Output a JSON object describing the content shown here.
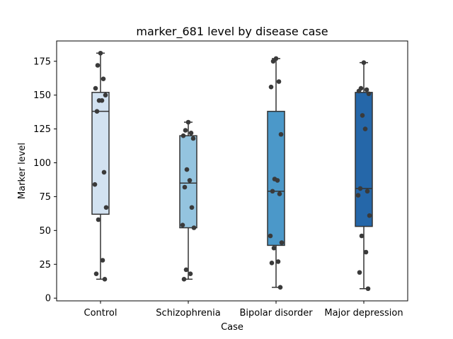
{
  "chart_data": {
    "type": "box",
    "title": "marker_681 level by disease case",
    "xlabel": "Case",
    "ylabel": "Marker level",
    "ylim": [
      -2,
      190
    ],
    "yticks": [
      0,
      25,
      50,
      75,
      100,
      125,
      150,
      175
    ],
    "grid": false,
    "legend": "none",
    "categories": [
      "Control",
      "Schizophrenia",
      "Bipolar disorder",
      "Major depression"
    ],
    "colors": [
      "#d2e2f1",
      "#94c4df",
      "#4b98c9",
      "#2567a9"
    ],
    "boxes": [
      {
        "category": "Control",
        "whisker_low": 14,
        "q1": 62,
        "median": 138,
        "q3": 152,
        "whisker_high": 181
      },
      {
        "category": "Schizophrenia",
        "whisker_low": 14,
        "q1": 52,
        "median": 85,
        "q3": 120,
        "whisker_high": 130
      },
      {
        "category": "Bipolar disorder",
        "whisker_low": 8,
        "q1": 39,
        "median": 79,
        "q3": 138,
        "whisker_high": 177
      },
      {
        "category": "Major depression",
        "whisker_low": 7,
        "q1": 53,
        "median": 81,
        "q3": 152,
        "whisker_high": 174
      }
    ],
    "points": [
      {
        "category": "Control",
        "values": [
          181,
          172,
          162,
          155,
          150,
          146,
          146,
          138,
          93,
          84,
          67,
          58,
          28,
          18,
          14
        ]
      },
      {
        "category": "Schizophrenia",
        "values": [
          130,
          124,
          122,
          120,
          118,
          95,
          87,
          82,
          67,
          54,
          52,
          21,
          18,
          14
        ]
      },
      {
        "category": "Bipolar disorder",
        "values": [
          177,
          175,
          160,
          156,
          121,
          88,
          87,
          79,
          77,
          46,
          41,
          37,
          27,
          26,
          8
        ]
      },
      {
        "category": "Major depression",
        "values": [
          174,
          155,
          154,
          153,
          151,
          135,
          125,
          81,
          79,
          76,
          61,
          46,
          34,
          19,
          7
        ]
      }
    ]
  }
}
